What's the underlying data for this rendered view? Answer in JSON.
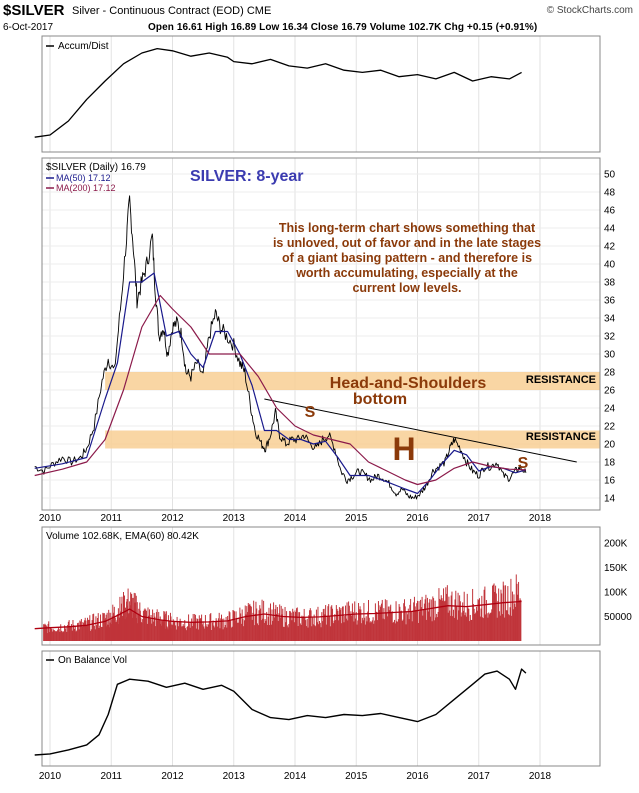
{
  "header": {
    "symbol": "$SILVER",
    "description": "Silver - Continuous Contract (EOD) CME",
    "date": "6-Oct-2017",
    "quote": "Open 16.61  High 16.89  Low 16.34  Close 16.79  Volume 102.7K  Chg +0.15 (+0.91%)",
    "brand": "© StockCharts.com"
  },
  "colors": {
    "price_bars": "#000000",
    "ma50": "#1a1a8c",
    "ma200": "#8b1a4a",
    "zone": "#f8cf94",
    "annotation": "#8b3a0a",
    "volume": "#c0343a",
    "title_blue": "#3b3bb0"
  },
  "chart_data": [
    {
      "type": "line",
      "panel": "Accum/Dist",
      "legend": [
        "Accum/Dist"
      ],
      "x": [
        2009.75,
        2010.0,
        2010.3,
        2010.6,
        2010.9,
        2011.2,
        2011.5,
        2011.75,
        2012.0,
        2012.3,
        2012.6,
        2012.9,
        2013.0,
        2013.3,
        2013.6,
        2013.9,
        2014.2,
        2014.5,
        2014.8,
        2015.1,
        2015.4,
        2015.7,
        2016.0,
        2016.3,
        2016.6,
        2016.9,
        2017.2,
        2017.5,
        2017.7
      ],
      "values": [
        10,
        12,
        25,
        45,
        62,
        78,
        88,
        92,
        90,
        85,
        88,
        84,
        80,
        78,
        82,
        76,
        74,
        78,
        72,
        70,
        72,
        66,
        68,
        64,
        70,
        62,
        66,
        64,
        70
      ]
    },
    {
      "type": "line",
      "panel": "$SILVER (Daily) 16.79",
      "title": "SILVER: 8-year",
      "legend": [
        "$SILVER (Daily) 16.79",
        "MA(50) 17.12",
        "MA(200) 17.12"
      ],
      "x_ticks": [
        "2010",
        "2011",
        "2012",
        "2013",
        "2014",
        "2015",
        "2016",
        "2017",
        "2018"
      ],
      "y_ticks": [
        14,
        16,
        18,
        20,
        22,
        24,
        26,
        28,
        30,
        32,
        34,
        36,
        38,
        40,
        42,
        44,
        46,
        48,
        50
      ],
      "ylim": [
        13,
        50
      ],
      "series": [
        {
          "name": "$SILVER (Daily) 16.79",
          "x": [
            2009.75,
            2009.9,
            2010.05,
            2010.2,
            2010.35,
            2010.5,
            2010.6,
            2010.72,
            2010.85,
            2010.95,
            2011.05,
            2011.15,
            2011.25,
            2011.3,
            2011.36,
            2011.42,
            2011.5,
            2011.58,
            2011.67,
            2011.72,
            2011.78,
            2011.85,
            2011.92,
            2012.0,
            2012.08,
            2012.15,
            2012.22,
            2012.3,
            2012.4,
            2012.5,
            2012.6,
            2012.7,
            2012.78,
            2012.88,
            2013.0,
            2013.1,
            2013.18,
            2013.28,
            2013.35,
            2013.45,
            2013.52,
            2013.6,
            2013.68,
            2013.75,
            2013.85,
            2013.95,
            2014.05,
            2014.15,
            2014.25,
            2014.35,
            2014.45,
            2014.55,
            2014.65,
            2014.75,
            2014.85,
            2014.95,
            2015.05,
            2015.15,
            2015.25,
            2015.35,
            2015.45,
            2015.55,
            2015.65,
            2015.75,
            2015.85,
            2015.95,
            2016.05,
            2016.15,
            2016.25,
            2016.35,
            2016.45,
            2016.53,
            2016.6,
            2016.7,
            2016.8,
            2016.9,
            2017.0,
            2017.1,
            2017.2,
            2017.3,
            2017.4,
            2017.5,
            2017.6,
            2017.68,
            2017.77
          ],
          "values": [
            17.5,
            17,
            17.8,
            18.5,
            18,
            18.5,
            19.5,
            22,
            27,
            29.5,
            28,
            35,
            43,
            47,
            42,
            36,
            38,
            40,
            43,
            37,
            32,
            33,
            30,
            33,
            33.5,
            32,
            28,
            27.5,
            29,
            27.5,
            32,
            34.5,
            33,
            32,
            31,
            29,
            28,
            24,
            21.5,
            20,
            19.5,
            21,
            23.5,
            21,
            20,
            20.5,
            20.5,
            21,
            20,
            19.5,
            20.5,
            21,
            19.5,
            17,
            16,
            16.5,
            17,
            16.5,
            16,
            16.5,
            16.2,
            15.5,
            14.5,
            15,
            14.2,
            14,
            14.5,
            15.5,
            17,
            17.5,
            18,
            19.5,
            20.5,
            19.5,
            18,
            17,
            16.5,
            17.5,
            17.5,
            18,
            16.5,
            16.2,
            17,
            17.4,
            16.8
          ]
        },
        {
          "name": "MA(50) 17.12",
          "x": [
            2009.75,
            2010.2,
            2010.6,
            2010.9,
            2011.1,
            2011.3,
            2011.5,
            2011.7,
            2011.9,
            2012.1,
            2012.3,
            2012.5,
            2012.7,
            2012.9,
            2013.1,
            2013.3,
            2013.5,
            2013.7,
            2013.9,
            2014.1,
            2014.3,
            2014.5,
            2014.7,
            2014.9,
            2015.2,
            2015.5,
            2015.8,
            2016.0,
            2016.2,
            2016.4,
            2016.6,
            2016.8,
            2017.0,
            2017.2,
            2017.4,
            2017.6,
            2017.77
          ],
          "values": [
            17.3,
            17.8,
            18.5,
            25,
            29,
            38,
            38,
            39,
            32,
            32.5,
            30,
            28.5,
            32.5,
            32.5,
            30,
            26.5,
            21.5,
            21.5,
            20.5,
            20.5,
            20,
            20.3,
            18.5,
            16.5,
            16.5,
            15.8,
            15,
            14.5,
            16,
            17.8,
            19.3,
            18.8,
            17,
            17.5,
            17.3,
            16.8,
            17.12
          ]
        },
        {
          "name": "MA(200) 17.12",
          "x": [
            2009.75,
            2010.2,
            2010.6,
            2010.9,
            2011.2,
            2011.5,
            2011.8,
            2012.0,
            2012.3,
            2012.6,
            2012.9,
            2013.1,
            2013.4,
            2013.7,
            2014.0,
            2014.3,
            2014.6,
            2014.9,
            2015.2,
            2015.5,
            2015.8,
            2016.0,
            2016.3,
            2016.6,
            2016.9,
            2017.2,
            2017.5,
            2017.77
          ],
          "values": [
            16.5,
            17.2,
            18,
            20.5,
            26,
            33,
            36.5,
            35,
            33,
            30,
            30,
            30,
            27.5,
            24,
            22,
            21,
            20.5,
            20,
            18,
            17,
            16,
            15.5,
            16,
            17.3,
            18,
            17.5,
            17.2,
            17.12
          ]
        }
      ],
      "annotations": [
        "This long-term chart shows something that is unloved, out of favor and in the late stages of a giant basing pattern - and therefore is worth accumulating, especially at the current low levels.",
        "Head-and-Shoulders",
        "bottom",
        "S",
        "H",
        "S",
        "RESISTANCE",
        "RESISTANCE"
      ],
      "resistance_zones": [
        [
          26,
          28
        ],
        [
          19.5,
          21.5
        ]
      ],
      "trendline": {
        "x": [
          2013.5,
          2018.6
        ],
        "values": [
          25,
          18
        ]
      }
    },
    {
      "type": "bar",
      "panel": "Volume 102.68K, EMA(60) 80.42K",
      "legend": [
        "Volume 102.68K, EMA(60) 80.42K"
      ],
      "y_ticks": [
        "50000",
        "100K",
        "150K",
        "200K"
      ],
      "ylim": [
        0,
        220000
      ],
      "x": [
        2009.75,
        2010.0,
        2010.3,
        2010.6,
        2010.9,
        2011.1,
        2011.3,
        2011.5,
        2011.8,
        2012.0,
        2012.3,
        2012.6,
        2012.9,
        2013.2,
        2013.5,
        2013.8,
        2014.1,
        2014.4,
        2014.7,
        2015.0,
        2015.3,
        2015.6,
        2015.9,
        2016.2,
        2016.5,
        2016.8,
        2017.1,
        2017.4,
        2017.7
      ],
      "values": [
        25000,
        28000,
        30000,
        35000,
        45000,
        60000,
        80000,
        55000,
        45000,
        40000,
        38000,
        40000,
        42000,
        55000,
        60000,
        50000,
        48000,
        50000,
        55000,
        60000,
        58000,
        60000,
        62000,
        70000,
        80000,
        72000,
        78000,
        85000,
        102680
      ],
      "ema_values": [
        25000,
        27000,
        29000,
        32000,
        40000,
        52000,
        65000,
        50000,
        43000,
        40000,
        38000,
        39000,
        41000,
        50000,
        55000,
        50000,
        48000,
        49000,
        52000,
        55000,
        56000,
        58000,
        60000,
        66000,
        72000,
        70000,
        74000,
        78000,
        80420
      ]
    },
    {
      "type": "line",
      "panel": "On Balance Vol",
      "legend": [
        "On Balance Vol"
      ],
      "x_ticks": [
        "2010",
        "2011",
        "2012",
        "2013",
        "2014",
        "2015",
        "2016",
        "2017",
        "2018"
      ],
      "x": [
        2009.75,
        2010.0,
        2010.3,
        2010.6,
        2010.8,
        2010.95,
        2011.1,
        2011.3,
        2011.6,
        2011.9,
        2012.2,
        2012.5,
        2012.8,
        2013.0,
        2013.3,
        2013.6,
        2013.9,
        2014.2,
        2014.5,
        2014.8,
        2015.1,
        2015.4,
        2015.7,
        2016.0,
        2016.3,
        2016.6,
        2016.9,
        2017.1,
        2017.3,
        2017.5,
        2017.6,
        2017.7,
        2017.77
      ],
      "values": [
        5,
        6,
        10,
        15,
        25,
        45,
        75,
        80,
        78,
        72,
        76,
        70,
        74,
        68,
        50,
        42,
        40,
        44,
        42,
        45,
        44,
        46,
        42,
        38,
        45,
        60,
        75,
        85,
        88,
        80,
        70,
        90,
        86
      ]
    }
  ]
}
